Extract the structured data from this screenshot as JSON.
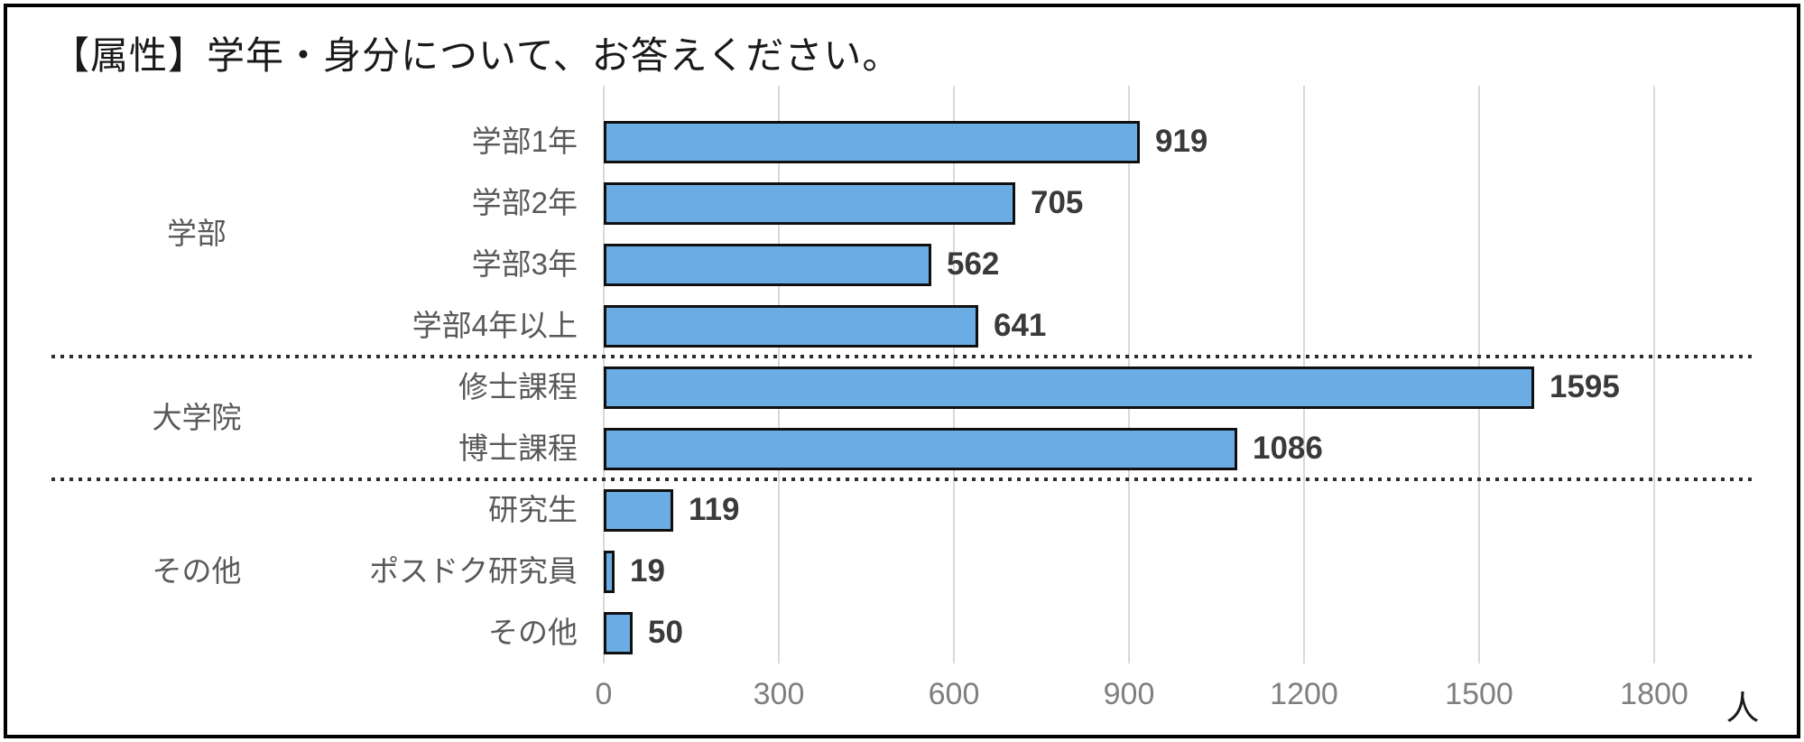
{
  "title": "【属性】学年・身分について、お答えください。",
  "chart_data": {
    "type": "bar",
    "orientation": "horizontal",
    "title": "【属性】学年・身分について、お答えください。",
    "unit_label": "人",
    "bar_color": "#6cace4",
    "bar_border_color": "#101010",
    "gridline_color": "#d9d9d9",
    "axis": {
      "min": 0,
      "max": 1800,
      "tick_step": 300,
      "ticks": [
        0,
        300,
        600,
        900,
        1200,
        1500,
        1800
      ]
    },
    "groups": [
      {
        "label": "学部",
        "items": [
          {
            "label": "学部1年",
            "value": 919
          },
          {
            "label": "学部2年",
            "value": 705
          },
          {
            "label": "学部3年",
            "value": 562
          },
          {
            "label": "学部4年以上",
            "value": 641
          }
        ]
      },
      {
        "label": "大学院",
        "items": [
          {
            "label": "修士課程",
            "value": 1595
          },
          {
            "label": "博士課程",
            "value": 1086
          }
        ]
      },
      {
        "label": "その他",
        "items": [
          {
            "label": "研究生",
            "value": 119
          },
          {
            "label": "ポスドク研究員",
            "value": 19
          },
          {
            "label": "その他",
            "value": 50
          }
        ]
      }
    ]
  }
}
